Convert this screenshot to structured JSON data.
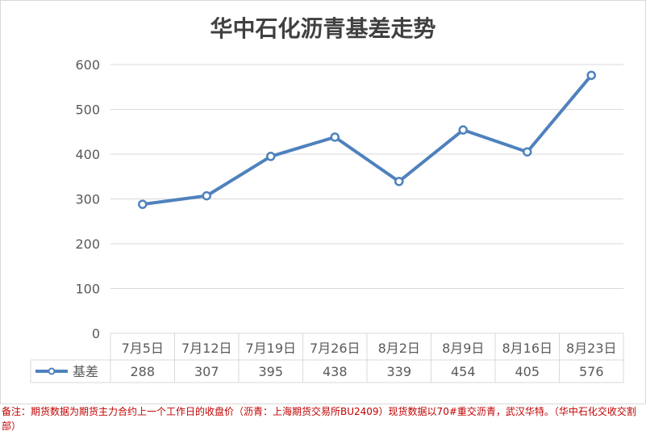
{
  "chart_data": {
    "type": "line",
    "title": "华中石化沥青基差走势",
    "categories": [
      "7月5日",
      "7月12日",
      "7月19日",
      "7月26日",
      "8月2日",
      "8月9日",
      "8月16日",
      "8月23日"
    ],
    "series": [
      {
        "name": "基差",
        "values": [
          288,
          307,
          395,
          438,
          339,
          454,
          405,
          576
        ]
      }
    ],
    "yticks": [
      "0",
      "100",
      "200",
      "300",
      "400",
      "500",
      "600"
    ],
    "ylim": [
      0,
      600
    ],
    "grid": true,
    "legend": "data-table-left",
    "data_table": true,
    "colors": {
      "line": "#4f81bd",
      "marker_fill": "#ffffff",
      "grid": "#d9d9d9"
    }
  },
  "note": "备注：期货数据为期货主力合约上一个工作日的收盘价（沥青：上海期货交易所BU2409）现货数据以70#重交沥青，武汉华特。（华中石化交收交割部）"
}
